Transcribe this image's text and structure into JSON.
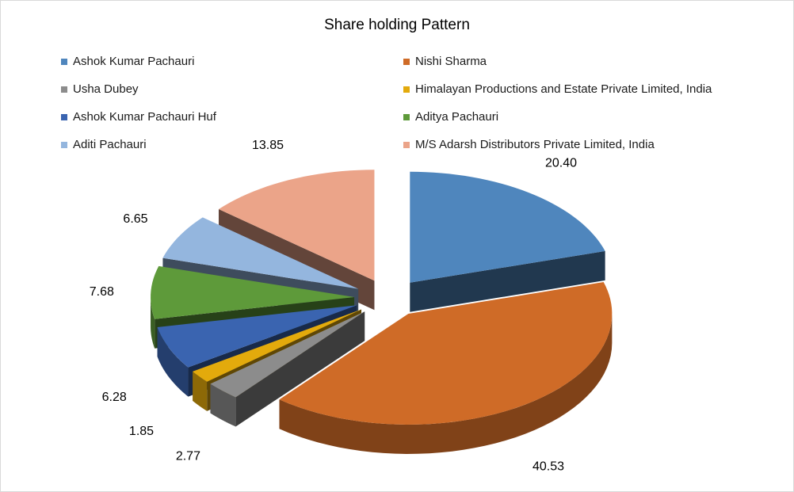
{
  "chart_data": {
    "type": "pie",
    "title": "Share holding Pattern",
    "legend_position": "top",
    "categories": [
      "Ashok Kumar Pachauri",
      "Nishi Sharma",
      "Usha Dubey",
      "Himalayan Productions and Estate Private Limited, India",
      "Ashok Kumar Pachauri Huf",
      "Aditya Pachauri",
      "Aditi Pachauri",
      "M/S Adarsh Distributors Private Limited, India"
    ],
    "values": [
      20.4,
      40.53,
      2.77,
      1.85,
      6.28,
      7.68,
      6.65,
      13.85
    ],
    "value_labels": [
      "20.40",
      "40.53",
      "2.77",
      "1.85",
      "6.28",
      "7.68",
      "6.65",
      "13.85"
    ],
    "colors": [
      "#4f86bd",
      "#cf6b27",
      "#8c8c8c",
      "#e3aa0c",
      "#3a64b0",
      "#5e9a3a",
      "#94b6de",
      "#eba489"
    ]
  }
}
